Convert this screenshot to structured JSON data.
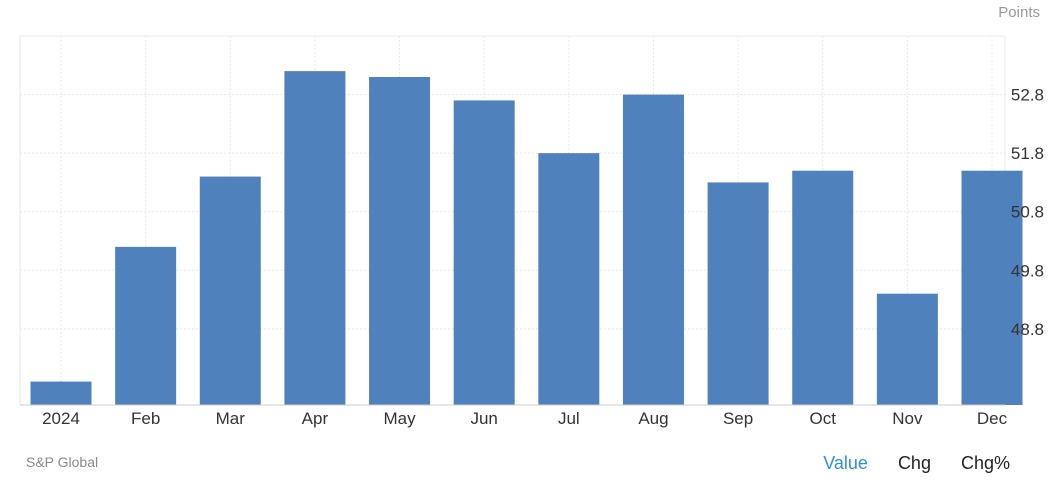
{
  "chart_data": {
    "type": "bar",
    "categories": [
      "2024",
      "Feb",
      "Mar",
      "Apr",
      "May",
      "Jun",
      "Jul",
      "Aug",
      "Sep",
      "Oct",
      "Nov",
      "Dec"
    ],
    "values": [
      47.9,
      50.2,
      51.4,
      53.2,
      53.1,
      52.7,
      51.8,
      52.8,
      51.3,
      51.5,
      49.4,
      51.5
    ],
    "ylabel": "Points",
    "yticks": [
      48.8,
      49.8,
      50.8,
      51.8,
      52.8
    ],
    "ylim": [
      47.5,
      53.8
    ],
    "grid": true,
    "bar_color": "#4f81bd"
  },
  "footer": {
    "source": "S&P Global",
    "tabs": [
      {
        "label": "Value",
        "active": true
      },
      {
        "label": "Chg",
        "active": false
      },
      {
        "label": "Chg%",
        "active": false
      }
    ]
  },
  "colors": {
    "accent": "#2f8fd8",
    "grid": "#e8e8e8"
  }
}
